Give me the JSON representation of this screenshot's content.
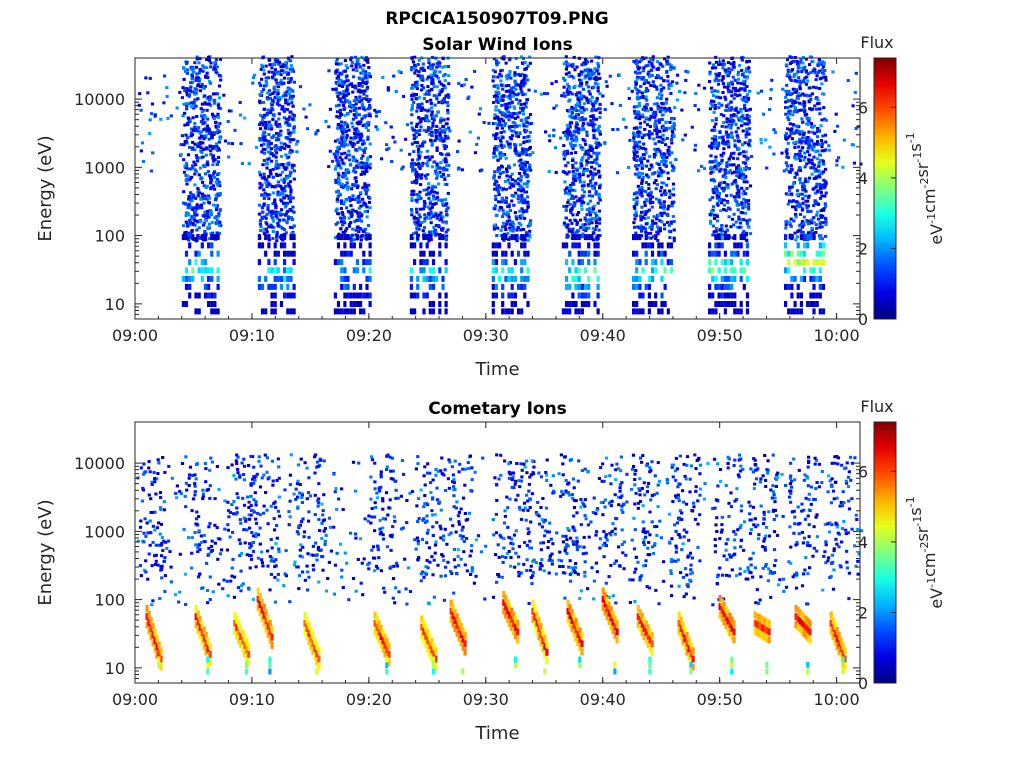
{
  "figure": {
    "main_title": "RPCICA150907T09.PNG"
  },
  "chart_data": [
    {
      "type": "heatmap",
      "title": "Solar Wind Ions",
      "xlabel": "Time",
      "ylabel": "Energy (eV)",
      "x_ticks": [
        "09:00",
        "09:10",
        "09:20",
        "09:30",
        "09:40",
        "09:50",
        "10:00"
      ],
      "x_tick_minutes": [
        0,
        10,
        20,
        30,
        40,
        50,
        60
      ],
      "xlim_minutes": [
        0,
        62
      ],
      "y_scale": "log",
      "y_ticks": [
        "10",
        "100",
        "1000",
        "10000"
      ],
      "y_tick_values": [
        10,
        100,
        1000,
        10000
      ],
      "ylim": [
        6,
        40000
      ],
      "colorbar": {
        "title": "Flux",
        "label_parts": [
          "eV",
          "-1",
          "cm",
          "-2",
          "sr",
          "-1",
          "s",
          "-1"
        ],
        "ticks": [
          "0",
          "2",
          "4",
          "6"
        ],
        "tick_values": [
          0,
          2,
          4,
          6
        ],
        "range": [
          0,
          7.4
        ],
        "colormap": "jet"
      },
      "bursts": [
        {
          "start_min": 4.0,
          "end_min": 7.2,
          "peak_energy_ev": 30,
          "peak_flux": 4.3
        },
        {
          "start_min": 10.5,
          "end_min": 13.5,
          "peak_energy_ev": 25,
          "peak_flux": 3.8
        },
        {
          "start_min": 17.0,
          "end_min": 20.0,
          "peak_energy_ev": 25,
          "peak_flux": 3.4
        },
        {
          "start_min": 23.5,
          "end_min": 26.7,
          "peak_energy_ev": 25,
          "peak_flux": 3.4
        },
        {
          "start_min": 30.5,
          "end_min": 33.7,
          "peak_energy_ev": 25,
          "peak_flux": 3.8
        },
        {
          "start_min": 36.5,
          "end_min": 39.7,
          "peak_energy_ev": 25,
          "peak_flux": 4.3
        },
        {
          "start_min": 42.5,
          "end_min": 46.0,
          "peak_energy_ev": 25,
          "peak_flux": 4.2
        },
        {
          "start_min": 49.0,
          "end_min": 52.5,
          "peak_energy_ev": 30,
          "peak_flux": 4.6
        },
        {
          "start_min": 55.5,
          "end_min": 59.0,
          "peak_energy_ev": 40,
          "peak_flux": 5.3
        }
      ],
      "background": "sparse low-flux dots between 1000 and 10000 eV across the whole interval"
    },
    {
      "type": "heatmap",
      "title": "Cometary Ions",
      "xlabel": "Time",
      "ylabel": "Energy (eV)",
      "x_ticks": [
        "09:00",
        "09:10",
        "09:20",
        "09:30",
        "09:40",
        "09:50",
        "10:00"
      ],
      "x_tick_minutes": [
        0,
        10,
        20,
        30,
        40,
        50,
        60
      ],
      "xlim_minutes": [
        0,
        62
      ],
      "y_scale": "log",
      "y_ticks": [
        "10",
        "100",
        "1000",
        "10000"
      ],
      "y_tick_values": [
        10,
        100,
        1000,
        10000
      ],
      "ylim": [
        6,
        40000
      ],
      "colorbar": {
        "title": "Flux",
        "label_parts": [
          "eV",
          "-1",
          "cm",
          "-2",
          "sr",
          "-1",
          "s",
          "-1"
        ],
        "ticks": [
          "0",
          "2",
          "4",
          "6"
        ],
        "tick_values": [
          0,
          2,
          4,
          6
        ],
        "range": [
          0,
          7.4
        ],
        "colormap": "jet"
      },
      "features": [
        {
          "time_min": 1.5,
          "energy_start_ev": 50,
          "energy_end_ev": 12,
          "peak_flux": 6.8
        },
        {
          "time_min": 5.7,
          "energy_start_ev": 50,
          "energy_end_ev": 14,
          "peak_flux": 6.5
        },
        {
          "time_min": 9.0,
          "energy_start_ev": 40,
          "energy_end_ev": 14,
          "peak_flux": 6.3
        },
        {
          "time_min": 11.0,
          "energy_start_ev": 90,
          "energy_end_ev": 25,
          "peak_flux": 6.8
        },
        {
          "time_min": 15.0,
          "energy_start_ev": 40,
          "energy_end_ev": 12,
          "peak_flux": 6.3
        },
        {
          "time_min": 21.0,
          "energy_start_ev": 40,
          "energy_end_ev": 14,
          "peak_flux": 6.6
        },
        {
          "time_min": 25.0,
          "energy_start_ev": 35,
          "energy_end_ev": 12,
          "peak_flux": 6.3
        },
        {
          "time_min": 27.5,
          "energy_start_ev": 60,
          "energy_end_ev": 20,
          "peak_flux": 6.8
        },
        {
          "time_min": 32.0,
          "energy_start_ev": 80,
          "energy_end_ev": 30,
          "peak_flux": 6.8
        },
        {
          "time_min": 34.5,
          "energy_start_ev": 60,
          "energy_end_ev": 15,
          "peak_flux": 6.6
        },
        {
          "time_min": 37.5,
          "energy_start_ev": 60,
          "energy_end_ev": 20,
          "peak_flux": 6.8
        },
        {
          "time_min": 40.5,
          "energy_start_ev": 90,
          "energy_end_ev": 30,
          "peak_flux": 6.8
        },
        {
          "time_min": 43.5,
          "energy_start_ev": 50,
          "energy_end_ev": 20,
          "peak_flux": 6.6
        },
        {
          "time_min": 47.0,
          "energy_start_ev": 40,
          "energy_end_ev": 12,
          "peak_flux": 6.6
        },
        {
          "time_min": 50.5,
          "energy_start_ev": 70,
          "energy_end_ev": 30,
          "peak_flux": 6.8
        },
        {
          "time_min": 53.5,
          "energy_start_ev": 40,
          "energy_end_ev": 30,
          "peak_flux": 6.6
        },
        {
          "time_min": 57.0,
          "energy_start_ev": 50,
          "energy_end_ev": 30,
          "peak_flux": 6.8
        },
        {
          "time_min": 60.0,
          "energy_start_ev": 40,
          "energy_end_ev": 12,
          "peak_flux": 6.6
        }
      ],
      "background": "sparse low-flux dots from 100 to 10000 eV, denser columns near bursts"
    }
  ]
}
